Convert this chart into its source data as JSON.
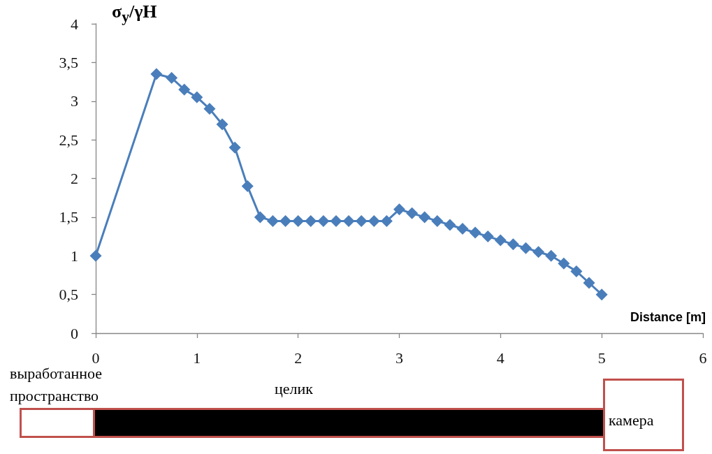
{
  "chart_data": {
    "type": "line",
    "ylabel": "σ$_{y}$/γH",
    "xlabel": "Distance [m]",
    "x": [
      0,
      0.6,
      0.75,
      0.875,
      1.0,
      1.125,
      1.25,
      1.375,
      1.5,
      1.625,
      1.75,
      1.875,
      2.0,
      2.125,
      2.25,
      2.375,
      2.5,
      2.625,
      2.75,
      2.875,
      3.0,
      3.125,
      3.25,
      3.375,
      3.5,
      3.625,
      3.75,
      3.875,
      4.0,
      4.125,
      4.25,
      4.375,
      4.5,
      4.625,
      4.75,
      4.875,
      5.0
    ],
    "values": [
      1.0,
      3.35,
      3.3,
      3.15,
      3.05,
      2.9,
      2.7,
      2.4,
      1.9,
      1.5,
      1.45,
      1.45,
      1.45,
      1.45,
      1.45,
      1.45,
      1.45,
      1.45,
      1.45,
      1.45,
      1.6,
      1.55,
      1.5,
      1.45,
      1.4,
      1.35,
      1.3,
      1.25,
      1.2,
      1.15,
      1.1,
      1.05,
      1.0,
      0.9,
      0.8,
      0.65,
      0.5
    ],
    "color": "#4a7ebb",
    "marker": "diamond",
    "line_style": "solid",
    "xlim": [
      0,
      6
    ],
    "xticks": [
      0,
      1,
      2,
      3,
      4,
      5,
      6
    ],
    "ylim": [
      0,
      4
    ],
    "yticks": [
      0,
      {
        "value": 0.5,
        "label": "0,5"
      },
      1,
      {
        "value": 1.5,
        "label": "1,5"
      },
      2,
      {
        "value": 2.5,
        "label": "2,5"
      },
      3,
      {
        "value": 3.5,
        "label": "3,5"
      },
      4
    ],
    "annotations": [
      "выработанное пространство",
      "целик",
      "камера"
    ]
  }
}
